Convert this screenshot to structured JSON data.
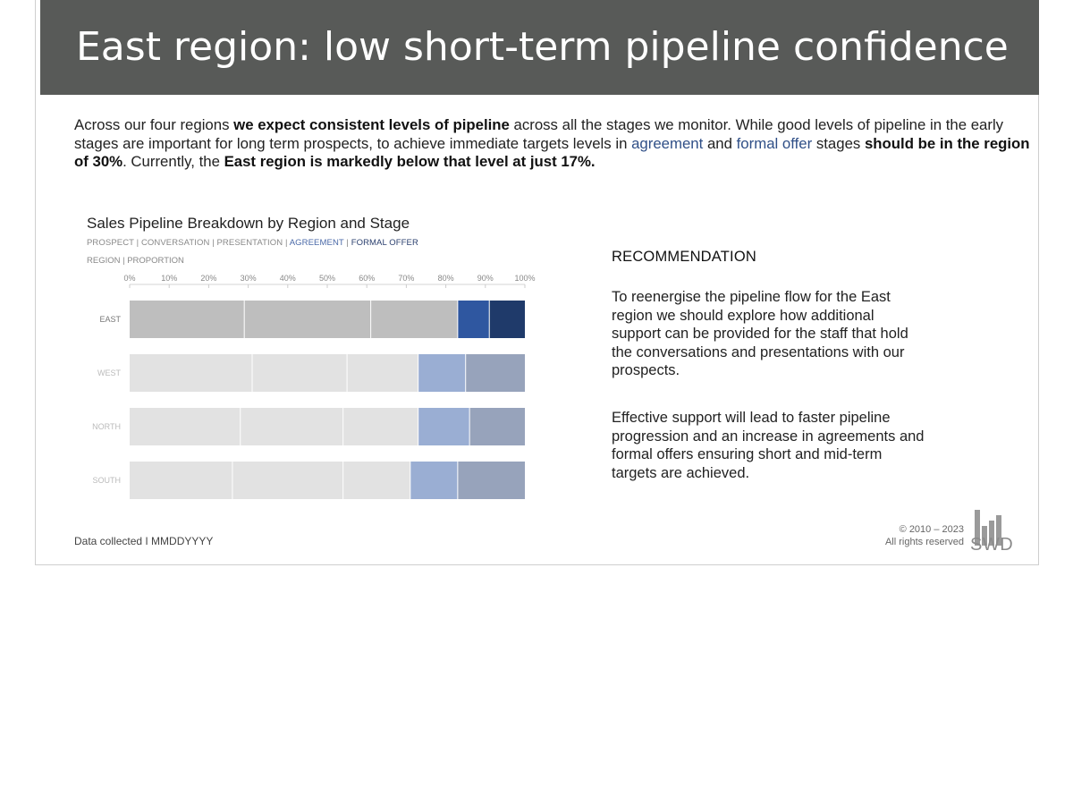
{
  "slide": {
    "title": "East region: low short-term pipeline confidence",
    "intro": {
      "p1": "Across our four regions ",
      "b1": "we expect consistent levels of pipeline",
      "p2": " across all the stages we monitor. While good levels of pipeline in the early stages are important for long term prospects, to achieve immediate targets levels in ",
      "agreement": "agreement",
      "p3": " and ",
      "formal_offer": "formal offer",
      "p4": " stages ",
      "b2": "should be in the region of 30%",
      "p5": ". Currently, the ",
      "b3": "East region is markedly below that level at just 17%."
    },
    "chart_title": "Sales Pipeline Breakdown by Region and Stage",
    "stages_label": {
      "prospect": "PROSPECT",
      "conversation": "CONVERSATION",
      "presentation": "PRESENTATION",
      "agreement": "AGREEMENT",
      "formal_offer": "FORMAL OFFER",
      "sep": " | "
    },
    "axis_title": "REGION | PROPORTION",
    "recommendation": {
      "heading": "RECOMMENDATION",
      "p1": "To reenergise the pipeline flow for the East region we should explore how additional support can be provided for the staff that hold the conversations and presentations with our prospects.",
      "p2": "Effective support will lead to faster pipeline progression and an increase in agreements and formal offers ensuring short and mid-term targets are achieved."
    },
    "footer": {
      "data_collected": "Data collected I MMDDYYYY",
      "copyright_line1": "© 2010 – 2023",
      "copyright_line2": "All rights reserved",
      "logo_text": "SWD"
    }
  },
  "colors": {
    "title_band": "#585a58",
    "east_early": "#bebebe",
    "other_early": "#e2e2e2",
    "east_agreement": "#2f57a0",
    "east_formal_offer": "#1f3a6a",
    "other_agreement": "#9aaed3",
    "other_formal_offer": "#97a3bb"
  },
  "chart_data": {
    "type": "bar",
    "orientation": "horizontal",
    "stacked": true,
    "title": "Sales Pipeline Breakdown by Region and Stage",
    "xlim": [
      0,
      100
    ],
    "x_ticks": [
      "0%",
      "10%",
      "20%",
      "30%",
      "40%",
      "50%",
      "60%",
      "70%",
      "80%",
      "90%",
      "100%"
    ],
    "categories": [
      "EAST",
      "WEST",
      "NORTH",
      "SOUTH"
    ],
    "series": [
      {
        "name": "PROSPECT",
        "values": [
          29,
          31,
          28,
          26
        ]
      },
      {
        "name": "CONVERSATION",
        "values": [
          32,
          24,
          26,
          28
        ]
      },
      {
        "name": "PRESENTATION",
        "values": [
          22,
          18,
          19,
          17
        ]
      },
      {
        "name": "AGREEMENT",
        "values": [
          8,
          12,
          13,
          12
        ]
      },
      {
        "name": "FORMAL OFFER",
        "values": [
          9,
          15,
          14,
          17
        ]
      }
    ]
  }
}
